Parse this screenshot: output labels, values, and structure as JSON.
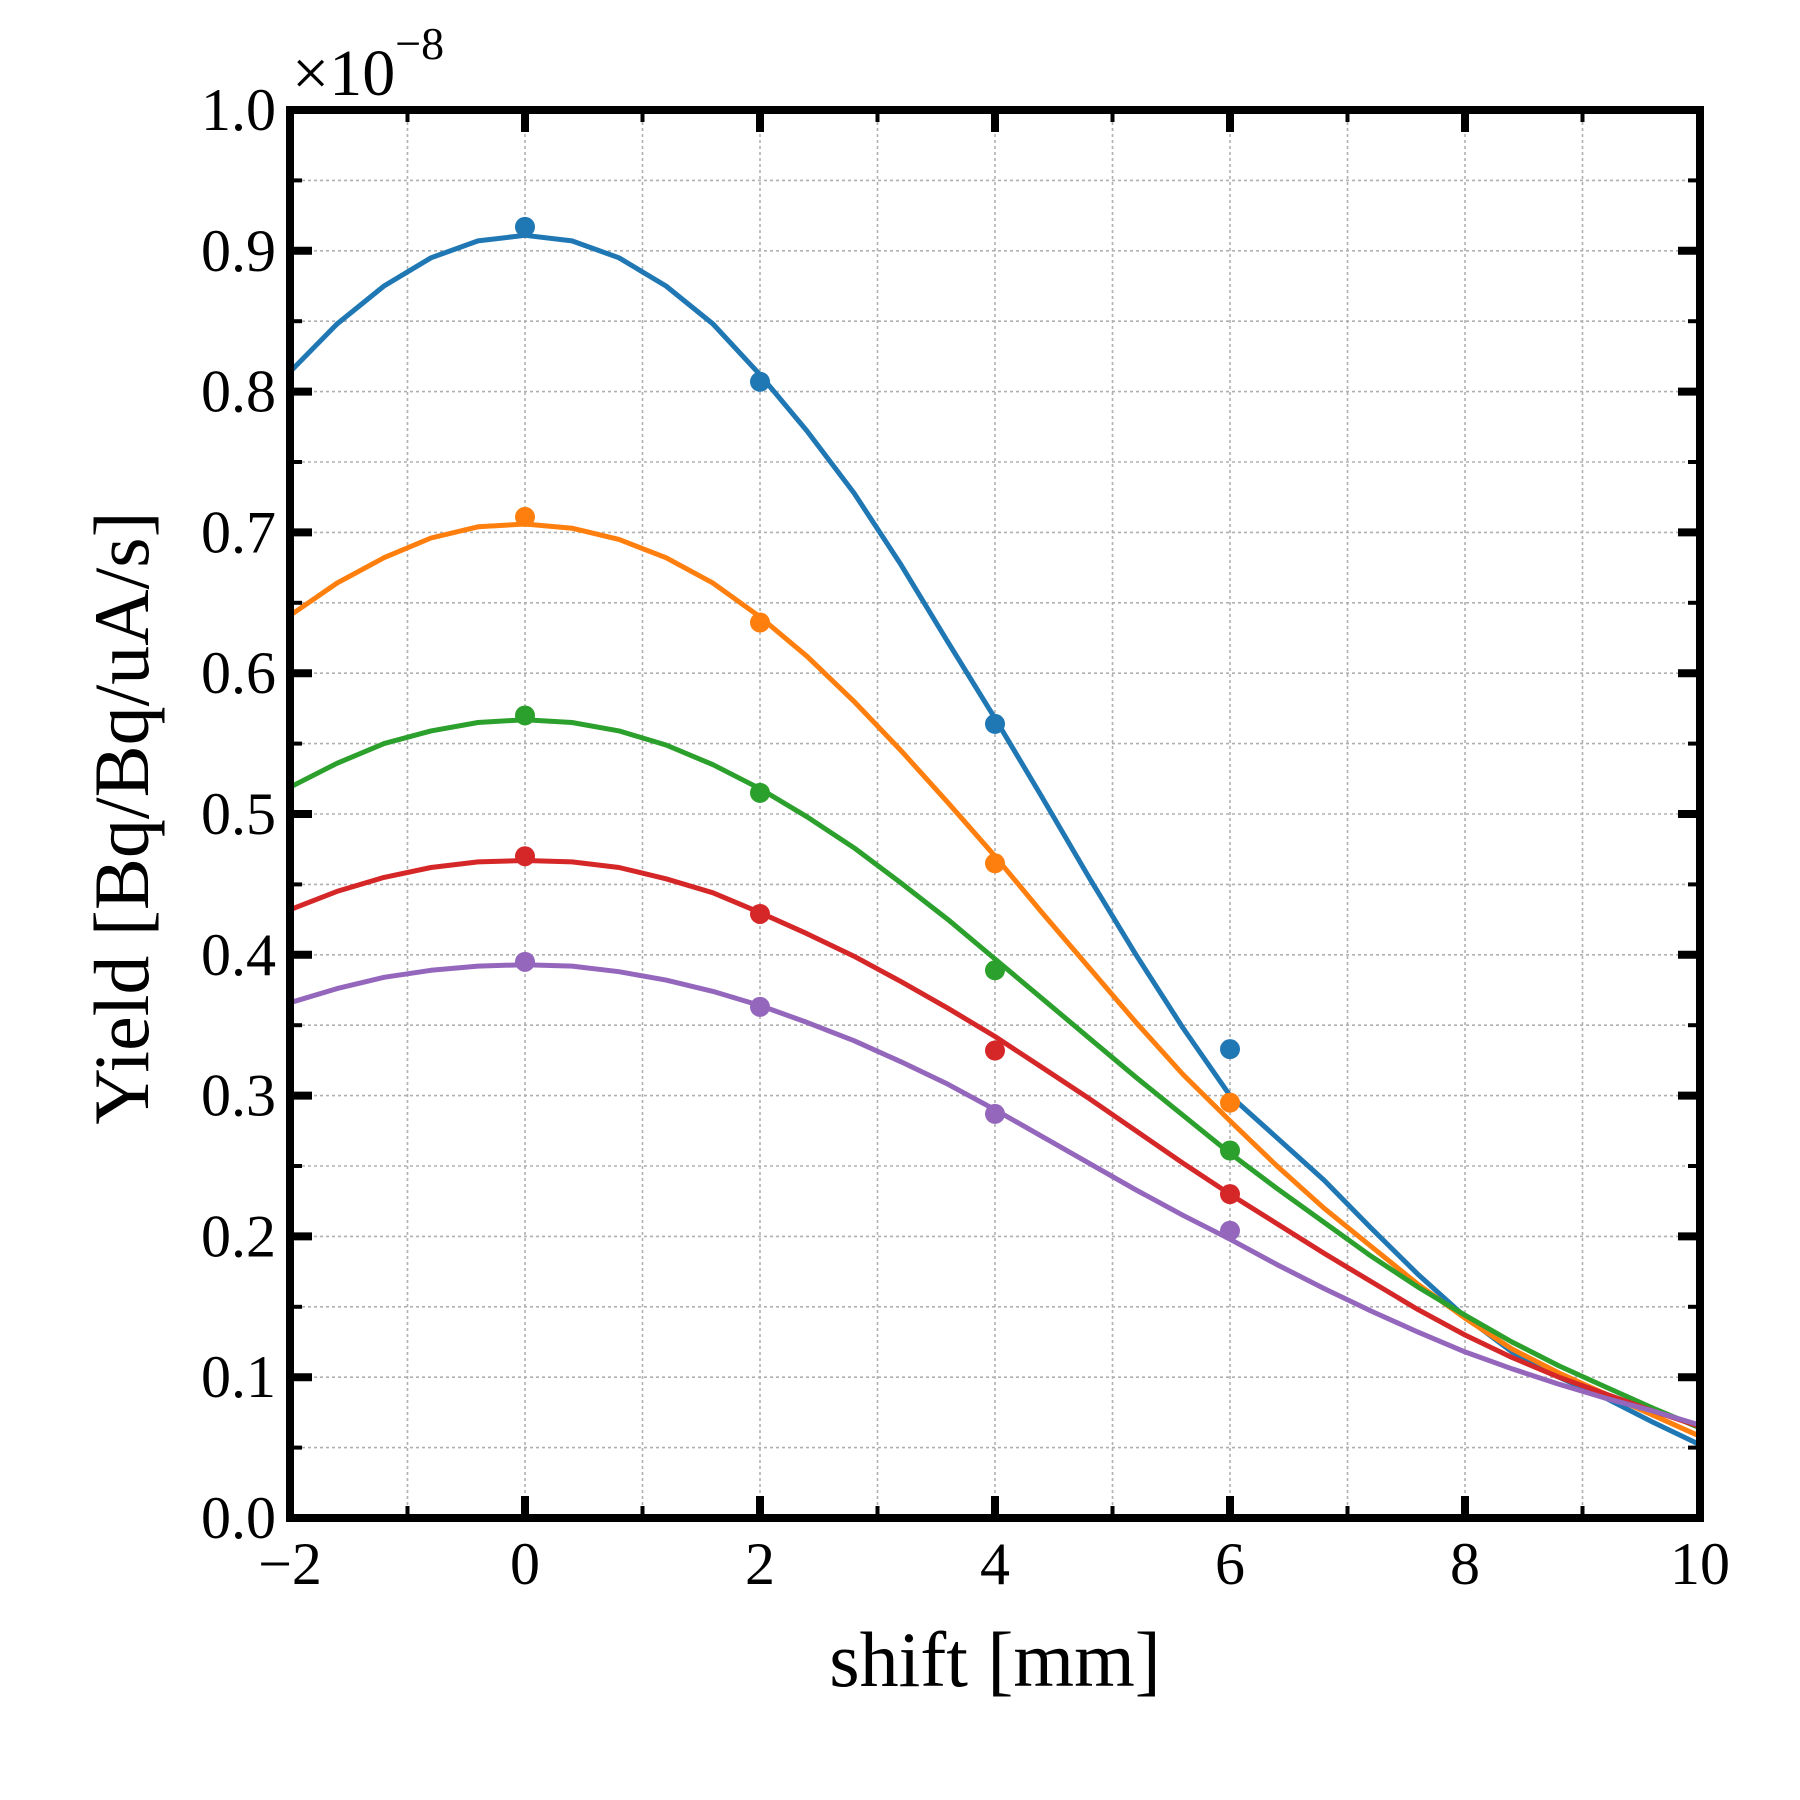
{
  "chart_data": {
    "type": "line",
    "title": "",
    "xlabel": "shift [mm]",
    "ylabel": "Yield [Bq/Bq/uA/s]",
    "scale_factor_label": "×10",
    "scale_factor_exponent": "−8",
    "xlim": [
      -2,
      10
    ],
    "ylim": [
      0.0,
      1.0
    ],
    "x_ticks": [
      -2,
      0,
      2,
      4,
      6,
      8,
      10
    ],
    "x_tick_labels": [
      "−2",
      "0",
      "2",
      "4",
      "6",
      "8",
      "10"
    ],
    "y_ticks": [
      0.0,
      0.1,
      0.2,
      0.3,
      0.4,
      0.5,
      0.6,
      0.7,
      0.8,
      0.9,
      1.0
    ],
    "y_tick_labels": [
      "0.0",
      "0.1",
      "0.2",
      "0.3",
      "0.4",
      "0.5",
      "0.6",
      "0.7",
      "0.8",
      "0.9",
      "1.0"
    ],
    "grid": true,
    "legend": "none",
    "series": [
      {
        "color": "#1f77b4",
        "points_x": [
          0,
          2,
          4,
          6
        ],
        "points_y": [
          0.917,
          0.807,
          0.564,
          0.333
        ],
        "curve_x": [
          -2,
          -1.6,
          -1.2,
          -0.8,
          -0.4,
          0,
          0.4,
          0.8,
          1.2,
          1.6,
          2,
          2.4,
          2.8,
          3.2,
          3.6,
          4,
          4.4,
          4.8,
          5.2,
          5.6,
          6,
          6.4,
          6.8,
          7.2,
          7.6,
          8,
          8.4,
          8.8,
          9.2,
          9.6,
          10
        ],
        "curve_y": [
          0.814,
          0.848,
          0.875,
          0.895,
          0.907,
          0.911,
          0.907,
          0.895,
          0.875,
          0.848,
          0.812,
          0.772,
          0.728,
          0.677,
          0.622,
          0.568,
          0.512,
          0.455,
          0.4,
          0.348,
          0.3,
          0.27,
          0.24,
          0.206,
          0.173,
          0.143,
          0.118,
          0.1,
          0.085,
          0.068,
          0.052
        ]
      },
      {
        "color": "#ff7f0e",
        "points_x": [
          0,
          2,
          4,
          6
        ],
        "points_y": [
          0.711,
          0.636,
          0.465,
          0.295
        ],
        "curve_x": [
          -2,
          -1.6,
          -1.2,
          -0.8,
          -0.4,
          0,
          0.4,
          0.8,
          1.2,
          1.6,
          2,
          2.4,
          2.8,
          3.2,
          3.6,
          4,
          4.4,
          4.8,
          5.2,
          5.6,
          6,
          6.4,
          6.8,
          7.2,
          7.6,
          8,
          8.4,
          8.8,
          9.2,
          9.6,
          10
        ],
        "curve_y": [
          0.641,
          0.664,
          0.682,
          0.696,
          0.704,
          0.706,
          0.703,
          0.695,
          0.682,
          0.664,
          0.64,
          0.612,
          0.58,
          0.545,
          0.508,
          0.47,
          0.43,
          0.391,
          0.352,
          0.315,
          0.282,
          0.25,
          0.22,
          0.193,
          0.166,
          0.142,
          0.12,
          0.103,
          0.088,
          0.073,
          0.058
        ]
      },
      {
        "color": "#2ca02c",
        "points_x": [
          0,
          2,
          4,
          6
        ],
        "points_y": [
          0.57,
          0.515,
          0.389,
          0.261
        ],
        "curve_x": [
          -2,
          -1.6,
          -1.2,
          -0.8,
          -0.4,
          0,
          0.4,
          0.8,
          1.2,
          1.6,
          2,
          2.4,
          2.8,
          3.2,
          3.6,
          4,
          4.4,
          4.8,
          5.2,
          5.6,
          6,
          6.4,
          6.8,
          7.2,
          7.6,
          8,
          8.4,
          8.8,
          9.2,
          9.6,
          10
        ],
        "curve_y": [
          0.519,
          0.536,
          0.55,
          0.559,
          0.565,
          0.567,
          0.565,
          0.559,
          0.549,
          0.535,
          0.518,
          0.498,
          0.476,
          0.451,
          0.425,
          0.397,
          0.369,
          0.341,
          0.313,
          0.286,
          0.259,
          0.234,
          0.21,
          0.186,
          0.164,
          0.144,
          0.125,
          0.108,
          0.093,
          0.078,
          0.064
        ]
      },
      {
        "color": "#d62728",
        "points_x": [
          0,
          2,
          4,
          6
        ],
        "points_y": [
          0.47,
          0.429,
          0.332,
          0.23
        ],
        "curve_x": [
          -2,
          -1.6,
          -1.2,
          -0.8,
          -0.4,
          0,
          0.4,
          0.8,
          1.2,
          1.6,
          2,
          2.4,
          2.8,
          3.2,
          3.6,
          4,
          4.4,
          4.8,
          5.2,
          5.6,
          6,
          6.4,
          6.8,
          7.2,
          7.6,
          8,
          8.4,
          8.8,
          9.2,
          9.6,
          10
        ],
        "curve_y": [
          0.432,
          0.445,
          0.455,
          0.462,
          0.466,
          0.467,
          0.466,
          0.462,
          0.454,
          0.444,
          0.43,
          0.415,
          0.399,
          0.381,
          0.362,
          0.342,
          0.32,
          0.298,
          0.275,
          0.252,
          0.23,
          0.209,
          0.188,
          0.168,
          0.148,
          0.13,
          0.114,
          0.1,
          0.088,
          0.076,
          0.065
        ]
      },
      {
        "color": "#9467bd",
        "points_x": [
          0,
          2,
          4,
          6
        ],
        "points_y": [
          0.395,
          0.363,
          0.287,
          0.204
        ],
        "curve_x": [
          -2,
          -1.6,
          -1.2,
          -0.8,
          -0.4,
          0,
          0.4,
          0.8,
          1.2,
          1.6,
          2,
          2.4,
          2.8,
          3.2,
          3.6,
          4,
          4.4,
          4.8,
          5.2,
          5.6,
          6,
          6.4,
          6.8,
          7.2,
          7.6,
          8,
          8.4,
          8.8,
          9.2,
          9.6,
          10
        ],
        "curve_y": [
          0.366,
          0.376,
          0.384,
          0.389,
          0.392,
          0.393,
          0.392,
          0.388,
          0.382,
          0.374,
          0.364,
          0.352,
          0.339,
          0.324,
          0.308,
          0.29,
          0.271,
          0.252,
          0.233,
          0.215,
          0.198,
          0.18,
          0.163,
          0.147,
          0.132,
          0.118,
          0.106,
          0.095,
          0.085,
          0.076,
          0.066
        ]
      }
    ]
  }
}
